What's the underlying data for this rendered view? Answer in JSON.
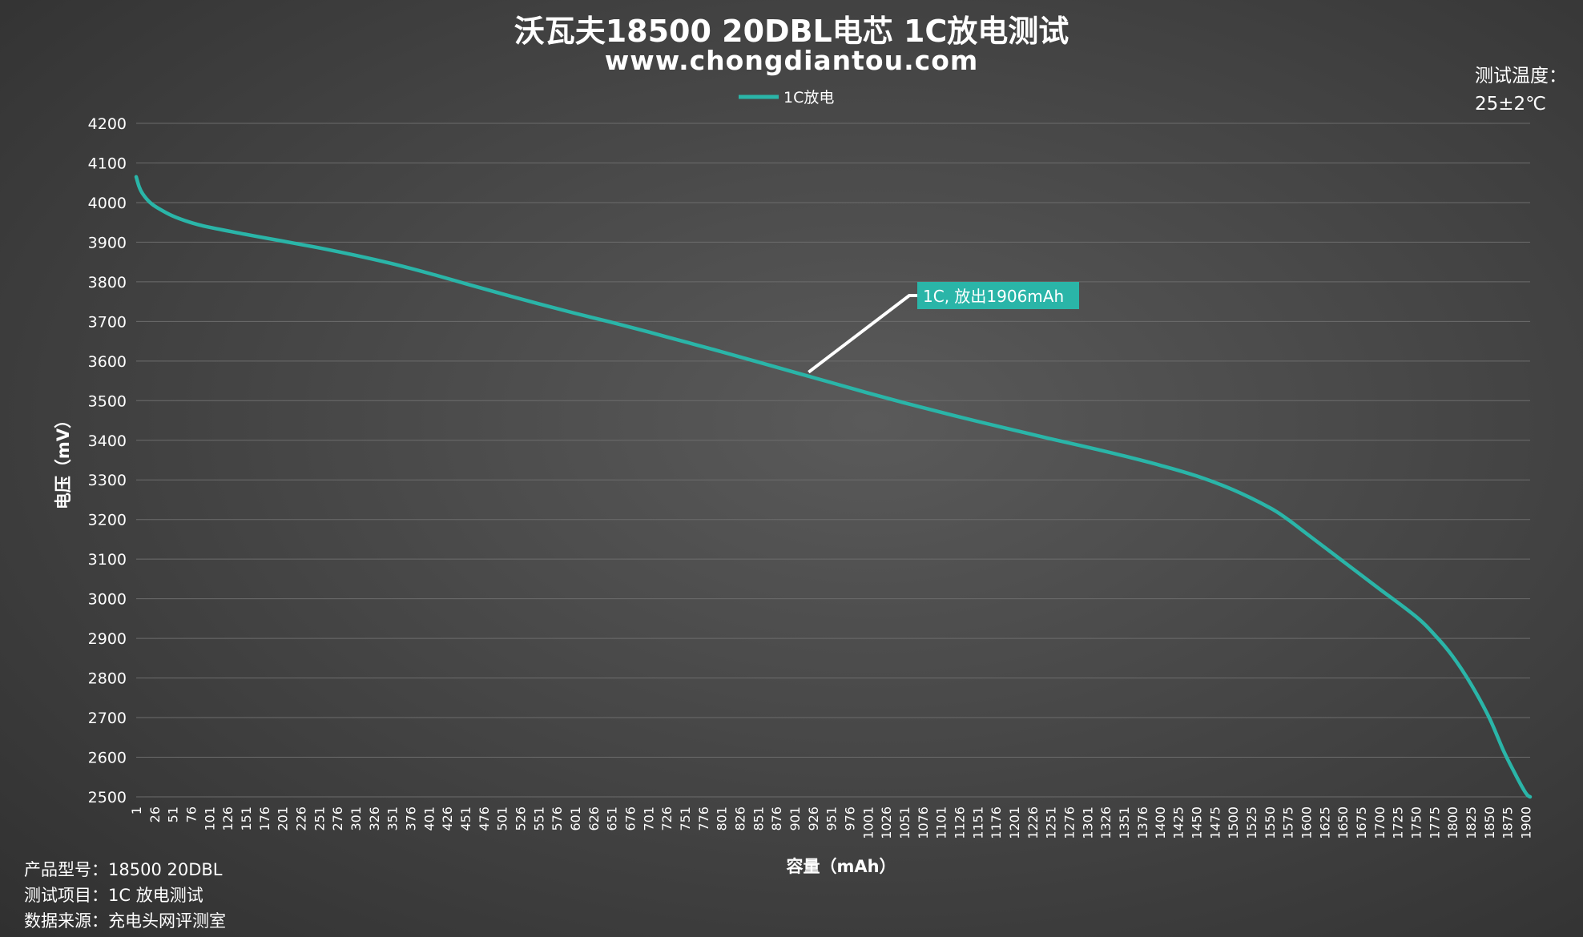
{
  "title": "沃瓦夫18500 20DBL电芯  1C放电测试",
  "subtitle": "www.chongdiantou.com",
  "temperature": {
    "label": "测试温度：",
    "value": "25±2℃"
  },
  "info": {
    "model": {
      "label": "产品型号：",
      "value": "18500 20DBL"
    },
    "test": {
      "label": "测试项目：",
      "value": "1C 放电测试"
    },
    "source": {
      "label": "数据来源：",
      "value": "充电头网评测室"
    }
  },
  "colors": {
    "series": "#2ab5a8",
    "grid": "#6c6c6c",
    "callout_line": "#ffffff"
  },
  "chart_data": {
    "type": "line",
    "xlabel": "容量（mAh）",
    "ylabel": "电压（mV）",
    "ylim": [
      2500,
      4200
    ],
    "yticks": [
      2500,
      2600,
      2700,
      2800,
      2900,
      3000,
      3100,
      3200,
      3300,
      3400,
      3500,
      3600,
      3700,
      3800,
      3900,
      4000,
      4100,
      4200
    ],
    "xticks": [
      "1",
      "26",
      "51",
      "76",
      "101",
      "126",
      "151",
      "176",
      "201",
      "226",
      "251",
      "276",
      "301",
      "326",
      "351",
      "376",
      "401",
      "426",
      "451",
      "476",
      "501",
      "526",
      "551",
      "576",
      "601",
      "626",
      "651",
      "676",
      "701",
      "726",
      "751",
      "776",
      "801",
      "826",
      "851",
      "876",
      "901",
      "926",
      "951",
      "976",
      "1001",
      "1026",
      "1051",
      "1076",
      "1101",
      "1126",
      "1151",
      "1176",
      "1201",
      "1226",
      "1251",
      "1276",
      "1301",
      "1326",
      "1351",
      "1376",
      "1400",
      "1425",
      "1450",
      "1475",
      "1500",
      "1525",
      "1550",
      "1575",
      "1600",
      "1625",
      "1650",
      "1675",
      "1700",
      "1725",
      "1750",
      "1775",
      "1800",
      "1825",
      "1850",
      "1875",
      "1900"
    ],
    "xlim": [
      1,
      1906
    ],
    "grid": true,
    "legend_position": "top",
    "series": [
      {
        "name": "1C放电",
        "x": [
          1,
          5,
          10,
          20,
          30,
          50,
          75,
          100,
          150,
          200,
          250,
          300,
          350,
          400,
          450,
          500,
          550,
          600,
          650,
          700,
          750,
          800,
          850,
          900,
          950,
          1000,
          1050,
          1100,
          1150,
          1200,
          1250,
          1300,
          1350,
          1400,
          1450,
          1500,
          1550,
          1575,
          1600,
          1650,
          1700,
          1750,
          1775,
          1800,
          1825,
          1850,
          1870,
          1885,
          1895,
          1902,
          1906
        ],
        "y": [
          4065,
          4040,
          4022,
          4000,
          3987,
          3967,
          3950,
          3938,
          3920,
          3903,
          3886,
          3867,
          3846,
          3822,
          3796,
          3770,
          3745,
          3721,
          3698,
          3674,
          3649,
          3624,
          3598,
          3572,
          3546,
          3520,
          3495,
          3471,
          3448,
          3426,
          3404,
          3383,
          3361,
          3337,
          3310,
          3275,
          3230,
          3200,
          3165,
          3095,
          3025,
          2955,
          2910,
          2855,
          2785,
          2700,
          2615,
          2560,
          2525,
          2505,
          2500
        ]
      }
    ],
    "annotation": {
      "text": "1C, 放出1906mAh",
      "x": 920,
      "y": 3572
    }
  }
}
